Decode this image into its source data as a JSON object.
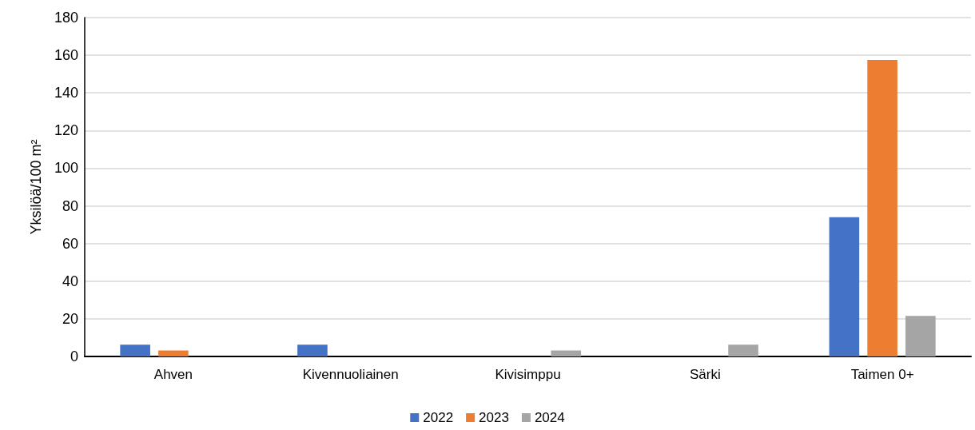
{
  "chart_data": {
    "type": "bar",
    "ylabel": "Yksilöä/100 m²",
    "categories": [
      "Ahven",
      "Kivennuoliainen",
      "Kivisimppu",
      "Särki",
      "Taimen 0+"
    ],
    "series": [
      {
        "name": "2022",
        "color": "#4472c4",
        "values": [
          6.3,
          6.3,
          0,
          0,
          74
        ]
      },
      {
        "name": "2023",
        "color": "#ed7d31",
        "values": [
          3.2,
          0,
          0,
          0,
          157.5
        ]
      },
      {
        "name": "2024",
        "color": "#a5a5a5",
        "values": [
          0,
          0,
          3.2,
          6.3,
          21.5
        ]
      }
    ],
    "ylim": [
      0,
      180
    ],
    "yticks": [
      0,
      20,
      40,
      60,
      80,
      100,
      120,
      140,
      160,
      180
    ],
    "grid": "y",
    "legend": "bottom"
  }
}
